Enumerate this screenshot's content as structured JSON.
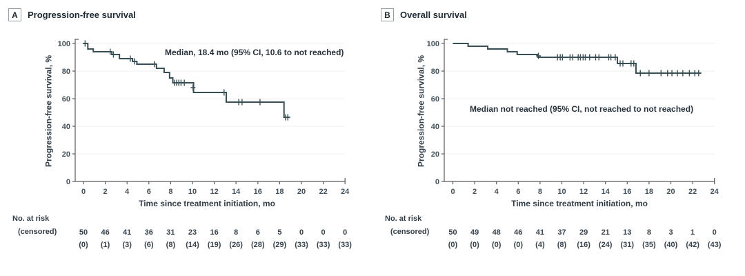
{
  "colors": {
    "curve": "#374E55",
    "axis": "#5a5a5a",
    "gridline": "#ebecec",
    "tick_text": "#43525C",
    "risk_text": "#37424C"
  },
  "chart_data": [
    {
      "type": "line",
      "subtype": "kaplan-meier-step",
      "panel_label": "A",
      "title": "Progression-free survival",
      "annotation": "Median, 18.4 mo (95% CI, 10.6 to not reached)",
      "xlabel": "Time since treatment initiation, mo",
      "ylabel": "Progression-free survival, %",
      "xlim": [
        0,
        24
      ],
      "ylim": [
        0,
        100
      ],
      "xticks": [
        0,
        2,
        4,
        6,
        8,
        10,
        12,
        14,
        16,
        18,
        20,
        22,
        24
      ],
      "yticks": [
        0,
        20,
        40,
        60,
        80,
        100
      ],
      "grid": "horizontal",
      "legend": "none",
      "line_color": "#374E55",
      "steps": [
        [
          0,
          100
        ],
        [
          0.4,
          96
        ],
        [
          0.9,
          94
        ],
        [
          2.6,
          92
        ],
        [
          3.3,
          89
        ],
        [
          4.5,
          87
        ],
        [
          4.9,
          85
        ],
        [
          6.7,
          82
        ],
        [
          7.4,
          79
        ],
        [
          7.9,
          75
        ],
        [
          8.2,
          71.5
        ],
        [
          10.1,
          64.5
        ],
        [
          13.1,
          57.5
        ],
        [
          18.4,
          46.5
        ]
      ],
      "curve_end": 18.9,
      "censor_marks": [
        [
          0.15,
          100
        ],
        [
          2.45,
          94
        ],
        [
          2.75,
          92
        ],
        [
          4.3,
          89
        ],
        [
          4.7,
          87
        ],
        [
          6.5,
          85
        ],
        [
          8.35,
          71.5
        ],
        [
          8.55,
          71.5
        ],
        [
          8.75,
          71.5
        ],
        [
          8.95,
          71.5
        ],
        [
          9.25,
          71.5
        ],
        [
          10.05,
          68
        ],
        [
          12.9,
          64.5
        ],
        [
          14.25,
          57.5
        ],
        [
          14.55,
          57.5
        ],
        [
          16.2,
          57.5
        ],
        [
          18.55,
          46.5
        ],
        [
          18.75,
          46.5
        ]
      ],
      "risk_label": "No. at risk",
      "censored_label": "(censored)",
      "at_risk": [
        50,
        46,
        41,
        36,
        31,
        23,
        16,
        8,
        6,
        5,
        0,
        0,
        0
      ],
      "censored_counts": [
        "(0)",
        "(1)",
        "(3)",
        "(6)",
        "(8)",
        "(14)",
        "(19)",
        "(26)",
        "(28)",
        "(29)",
        "(33)",
        "(33)",
        "(33)"
      ]
    },
    {
      "type": "line",
      "subtype": "kaplan-meier-step",
      "panel_label": "B",
      "title": "Overall survival",
      "annotation": "Median not reached (95% CI, not reached to not reached)",
      "xlabel": "Time since treatment initiation, mo",
      "ylabel": "Progression-free survival, %",
      "xlim": [
        0,
        24
      ],
      "ylim": [
        0,
        100
      ],
      "xticks": [
        0,
        2,
        4,
        6,
        8,
        10,
        12,
        14,
        16,
        18,
        20,
        22,
        24
      ],
      "yticks": [
        0,
        20,
        40,
        60,
        80,
        100
      ],
      "grid": "horizontal",
      "legend": "none",
      "line_color": "#374E55",
      "steps": [
        [
          0,
          100
        ],
        [
          1.4,
          98
        ],
        [
          3.2,
          96
        ],
        [
          5.0,
          94
        ],
        [
          5.9,
          92
        ],
        [
          7.8,
          90
        ],
        [
          15.1,
          85.5
        ],
        [
          16.8,
          78.5
        ]
      ],
      "curve_end": 22.8,
      "censor_marks": [
        [
          7.85,
          91
        ],
        [
          9.6,
          90
        ],
        [
          9.85,
          90
        ],
        [
          10.05,
          90
        ],
        [
          10.75,
          90
        ],
        [
          11.0,
          90
        ],
        [
          11.5,
          90
        ],
        [
          11.7,
          90
        ],
        [
          11.95,
          90
        ],
        [
          12.15,
          90
        ],
        [
          12.55,
          90
        ],
        [
          13.1,
          90
        ],
        [
          13.4,
          90
        ],
        [
          14.3,
          90
        ],
        [
          14.5,
          90
        ],
        [
          14.9,
          90
        ],
        [
          15.35,
          85.5
        ],
        [
          15.6,
          85.5
        ],
        [
          16.35,
          85.5
        ],
        [
          16.6,
          85.5
        ],
        [
          17.2,
          78.5
        ],
        [
          18.0,
          78.5
        ],
        [
          19.1,
          78.5
        ],
        [
          19.7,
          78.5
        ],
        [
          20.1,
          78.5
        ],
        [
          20.6,
          78.5
        ],
        [
          21.1,
          78.5
        ],
        [
          21.7,
          78.5
        ],
        [
          22.2,
          78.5
        ],
        [
          22.55,
          78.5
        ]
      ],
      "risk_label": "No. at risk",
      "censored_label": "(censored)",
      "at_risk": [
        50,
        49,
        48,
        46,
        41,
        37,
        29,
        21,
        13,
        8,
        3,
        1,
        0
      ],
      "censored_counts": [
        "(0)",
        "(0)",
        "(0)",
        "(0)",
        "(4)",
        "(8)",
        "(16)",
        "(24)",
        "(31)",
        "(35)",
        "(40)",
        "(42)",
        "(43)"
      ]
    }
  ]
}
